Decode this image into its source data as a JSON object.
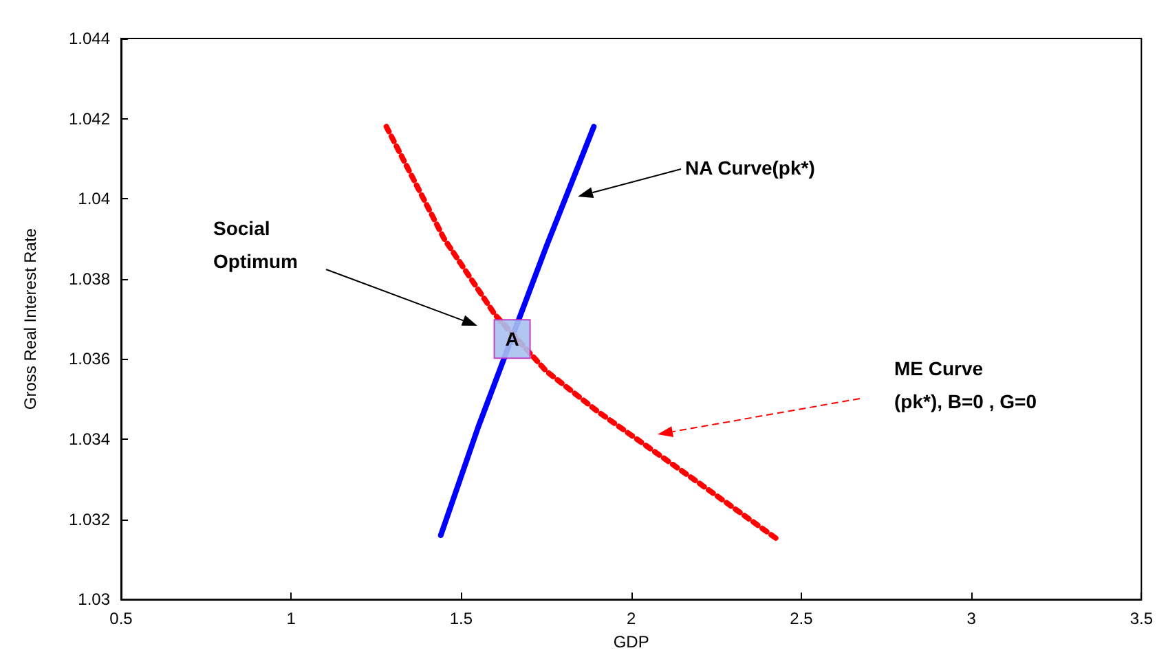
{
  "chart_data": {
    "type": "line",
    "xlabel": "GDP",
    "ylabel": "Gross Real Interest Rate",
    "xlim": [
      0.5,
      3.5
    ],
    "xticks": [
      0.5,
      1,
      1.5,
      2,
      2.5,
      3,
      3.5
    ],
    "ylim": [
      1.03,
      1.044
    ],
    "yticks": [
      1.03,
      1.032,
      1.034,
      1.036,
      1.038,
      1.04,
      1.042,
      1.044
    ],
    "grid": false,
    "marker": "none",
    "series": [
      {
        "color": "#0000ff",
        "line_style": "solid",
        "x": [
          1.44,
          1.55,
          1.75,
          1.89
        ],
        "values": [
          1.0316,
          1.0343,
          1.0388,
          1.0418
        ]
      },
      {
        "color": "#ff0000",
        "line_style": "dotted",
        "x": [
          1.28,
          1.45,
          1.6,
          1.75,
          1.9,
          2.0,
          2.2,
          2.43
        ],
        "values": [
          1.0418,
          1.039,
          1.0371,
          1.0357,
          1.0347,
          1.0341,
          1.0329,
          1.0315
        ]
      }
    ],
    "annotations": [
      "Social\nOptimum",
      "NA Curve(pk*)",
      "ME Curve\n(pk*), B=0 , G=0",
      {
        "text": "A",
        "x": 1.65,
        "y": 1.0365
      }
    ]
  }
}
